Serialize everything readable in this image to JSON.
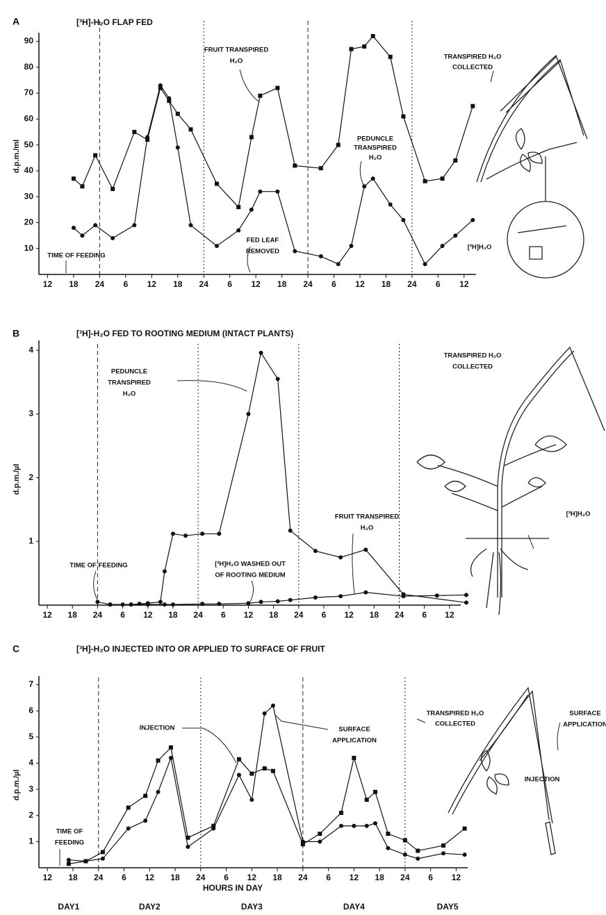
{
  "chart_data": [
    {
      "type": "line",
      "panel_label": "A",
      "title": "[³H]-H₂O FLAP FED",
      "ylabel": "d.p.m./ml",
      "xlim": [
        -2,
        101
      ],
      "ylim": [
        0,
        92
      ],
      "xticks": [
        {
          "value": 0,
          "label": "12"
        },
        {
          "value": 6,
          "label": "18"
        },
        {
          "value": 12,
          "label": "24"
        },
        {
          "value": 18,
          "label": "6"
        },
        {
          "value": 24,
          "label": "12"
        },
        {
          "value": 30,
          "label": "18"
        },
        {
          "value": 36,
          "label": "24"
        },
        {
          "value": 42,
          "label": "6"
        },
        {
          "value": 48,
          "label": "12"
        },
        {
          "value": 54,
          "label": "18"
        },
        {
          "value": 60,
          "label": "24"
        },
        {
          "value": 66,
          "label": "6"
        },
        {
          "value": 72,
          "label": "12"
        },
        {
          "value": 78,
          "label": "18"
        },
        {
          "value": 84,
          "label": "24"
        },
        {
          "value": 90,
          "label": "6"
        },
        {
          "value": 96,
          "label": "12"
        }
      ],
      "yticks": [
        10,
        20,
        30,
        40,
        50,
        60,
        70,
        80,
        90
      ],
      "day_lines": [
        12,
        36,
        60,
        84
      ],
      "x": [
        6,
        8,
        11,
        15,
        20,
        23,
        26,
        28,
        30,
        33,
        39,
        44,
        47,
        49,
        53,
        57,
        63,
        67,
        70,
        73,
        75,
        79,
        82,
        87,
        91,
        94,
        98
      ],
      "series": [
        {
          "marker": "square",
          "color": "#111111",
          "values": [
            37,
            34,
            46,
            33,
            55,
            52,
            72,
            67,
            62,
            56,
            35,
            26,
            53,
            69,
            72,
            42,
            41,
            50,
            87,
            88,
            92,
            84,
            61,
            36,
            37,
            44,
            65
          ]
        },
        {
          "marker": "circle",
          "color": "#111111",
          "values": [
            18,
            15,
            19,
            14,
            19,
            53,
            73,
            68,
            49,
            19,
            11,
            17,
            25,
            32,
            32,
            9,
            7,
            4,
            11,
            34,
            37,
            27,
            21,
            4,
            11,
            15,
            21
          ]
        }
      ],
      "annotations": [
        {
          "text": [
            "TIME OF FEEDING"
          ]
        },
        {
          "text": [
            "FRUIT TRANSPIRED",
            "H₂O"
          ]
        },
        {
          "text": [
            "PEDUNCLE",
            "TRANSPIRED",
            "H₂O"
          ]
        },
        {
          "text": [
            "FED LEAF",
            "REMOVED"
          ]
        },
        {
          "text": [
            "TRANSPIRED H₂O",
            "COLLECTED"
          ]
        },
        {
          "text": [
            "[³H]H₂O"
          ]
        }
      ]
    },
    {
      "type": "line",
      "panel_label": "B",
      "title": "[³H]-H₂O FED TO ROOTING MEDIUM (INTACT PLANTS)",
      "ylabel": "d.p.m./µl",
      "xlim": [
        -2,
        101
      ],
      "ylim": [
        0,
        4.1
      ],
      "xticks": [
        {
          "value": 0,
          "label": "12"
        },
        {
          "value": 6,
          "label": "18"
        },
        {
          "value": 12,
          "label": "24"
        },
        {
          "value": 18,
          "label": "6"
        },
        {
          "value": 24,
          "label": "12"
        },
        {
          "value": 30,
          "label": "18"
        },
        {
          "value": 36,
          "label": "24"
        },
        {
          "value": 42,
          "label": "6"
        },
        {
          "value": 48,
          "label": "12"
        },
        {
          "value": 54,
          "label": "18"
        },
        {
          "value": 60,
          "label": "24"
        },
        {
          "value": 66,
          "label": "6"
        },
        {
          "value": 72,
          "label": "12"
        },
        {
          "value": 78,
          "label": "18"
        },
        {
          "value": 84,
          "label": "24"
        },
        {
          "value": 90,
          "label": "6"
        },
        {
          "value": 96,
          "label": "12"
        }
      ],
      "yticks": [
        1,
        2,
        3,
        4
      ],
      "day_lines": [
        12,
        36,
        60,
        84
      ],
      "series": [
        {
          "marker": "circle",
          "color": "#111111",
          "x": [
            15,
            18,
            20,
            22,
            24,
            27,
            28,
            30,
            33,
            37,
            41,
            48,
            51,
            55,
            58,
            64,
            70,
            76,
            85,
            100
          ],
          "values": [
            0.01,
            0.01,
            0.01,
            0.02,
            0.03,
            0.05,
            0.53,
            1.12,
            1.09,
            1.12,
            1.12,
            3,
            3.96,
            3.55,
            1.17,
            0.85,
            0.75,
            0.87,
            0.17,
            0.04
          ]
        },
        {
          "marker": "circle",
          "color": "#111111",
          "x": [
            12,
            15,
            20,
            24,
            28,
            30,
            37,
            41,
            48,
            51,
            55,
            58,
            64,
            70,
            76,
            85,
            93,
            100
          ],
          "values": [
            0.05,
            0.01,
            0.01,
            0.01,
            0.01,
            0.01,
            0.02,
            0.02,
            0.03,
            0.05,
            0.06,
            0.08,
            0.12,
            0.14,
            0.2,
            0.14,
            0.15,
            0.16
          ]
        }
      ],
      "annotations": [
        {
          "text": [
            "PEDUNCLE",
            "TRANSPIRED",
            "H₂O"
          ]
        },
        {
          "text": [
            "TIME OF FEEDING"
          ]
        },
        {
          "text": [
            "[³H]H₂O WASHED OUT",
            "OF ROOTING MEDIUM"
          ]
        },
        {
          "text": [
            "FRUIT TRANSPIRED",
            "H₂O"
          ]
        },
        {
          "text": [
            "TRANSPIRED H₂O",
            "COLLECTED"
          ]
        },
        {
          "text": [
            "[³H]H₂O"
          ]
        }
      ]
    },
    {
      "type": "line",
      "panel_label": "C",
      "title": "[³H]-H₂O INJECTED INTO OR APPLIED TO SURFACE OF FRUIT",
      "ylabel": "d.p.m./µl",
      "xlabel": "HOURS IN DAY",
      "day_labels": [
        "DAY1",
        "DAY2",
        "DAY3",
        "DAY4",
        "DAY5"
      ],
      "xlim": [
        -2,
        101
      ],
      "ylim": [
        0,
        7.2
      ],
      "xticks": [
        {
          "value": 0,
          "label": "12"
        },
        {
          "value": 6,
          "label": "18"
        },
        {
          "value": 12,
          "label": "24"
        },
        {
          "value": 18,
          "label": "6"
        },
        {
          "value": 24,
          "label": "12"
        },
        {
          "value": 30,
          "label": "18"
        },
        {
          "value": 36,
          "label": "24"
        },
        {
          "value": 42,
          "label": "6"
        },
        {
          "value": 48,
          "label": "12"
        },
        {
          "value": 54,
          "label": "18"
        },
        {
          "value": 60,
          "label": "24"
        },
        {
          "value": 66,
          "label": "6"
        },
        {
          "value": 72,
          "label": "12"
        },
        {
          "value": 78,
          "label": "18"
        },
        {
          "value": 84,
          "label": "24"
        },
        {
          "value": 90,
          "label": "6"
        },
        {
          "value": 96,
          "label": "12"
        }
      ],
      "yticks": [
        1,
        2,
        3,
        4,
        5,
        6,
        7
      ],
      "day_lines": [
        12,
        36,
        60,
        84
      ],
      "x": [
        5,
        9,
        13,
        19,
        23,
        26,
        29,
        33,
        39,
        45,
        48,
        51,
        53,
        60,
        64,
        69,
        72,
        75,
        77,
        80,
        84,
        87,
        93,
        98
      ],
      "series": [
        {
          "marker": "circle",
          "color": "#111111",
          "values": [
            0.3,
            0.25,
            0.35,
            1.5,
            1.8,
            2.9,
            4.2,
            0.8,
            1.5,
            3.55,
            2.6,
            5.9,
            6.2,
            1.0,
            1.0,
            1.6,
            1.6,
            1.6,
            1.7,
            0.75,
            0.5,
            0.35,
            0.55,
            0.5
          ]
        },
        {
          "marker": "square",
          "color": "#111111",
          "values": [
            0.15,
            0.25,
            0.6,
            2.3,
            2.75,
            4.1,
            4.6,
            1.15,
            1.6,
            4.15,
            3.6,
            3.8,
            3.7,
            0.9,
            1.3,
            2.1,
            4.2,
            2.6,
            2.9,
            1.3,
            1.05,
            0.65,
            0.85,
            1.5
          ]
        }
      ],
      "annotations": [
        {
          "text": [
            "INJECTION"
          ]
        },
        {
          "text": [
            "SURFACE",
            "APPLICATION"
          ]
        },
        {
          "text": [
            "TIME OF",
            "FEEDING"
          ]
        },
        {
          "text": [
            "TRANSPIRED H₂O",
            "COLLECTED"
          ]
        },
        {
          "text": [
            "SURFACE",
            "APPLICATION"
          ]
        },
        {
          "text": [
            "INJECTION"
          ]
        }
      ]
    }
  ]
}
